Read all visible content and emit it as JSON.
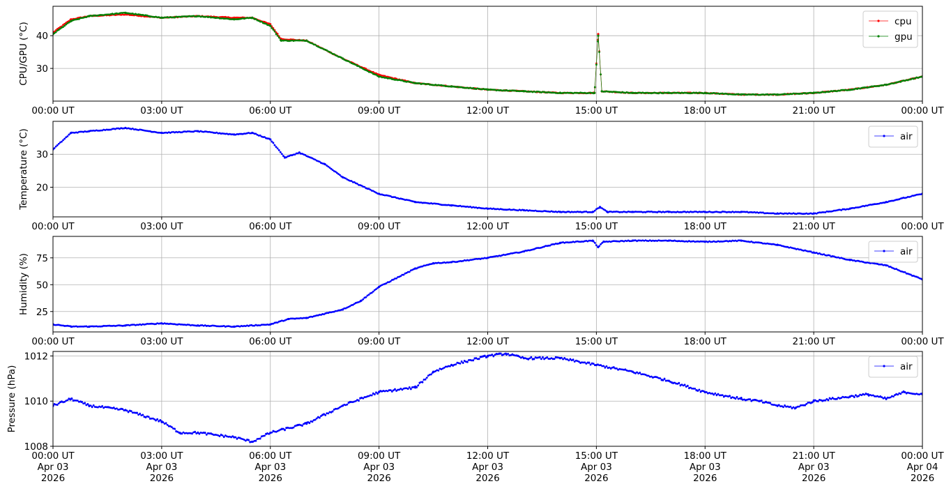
{
  "chart_data": [
    {
      "type": "line",
      "ylabel": "CPU/GPU (°C)",
      "ylim": [
        20,
        49
      ],
      "yticks": [
        30,
        40
      ],
      "grid": true,
      "legend_position": "top-right",
      "x_tick_labels": [
        "00:00 UT",
        "03:00 UT",
        "06:00 UT",
        "09:00 UT",
        "12:00 UT",
        "15:00 UT",
        "18:00 UT",
        "21:00 UT",
        "00:00 UT"
      ],
      "x_hours": [
        0,
        0.5,
        1,
        2,
        3,
        4,
        5,
        5.5,
        6,
        6.3,
        7,
        8,
        9,
        10,
        11,
        12,
        13,
        14,
        14.95,
        15.05,
        15.15,
        16,
        17,
        18,
        19,
        20,
        21,
        22,
        23,
        24
      ],
      "series": [
        {
          "name": "cpu",
          "color": "#ff0000",
          "values": [
            41,
            45,
            46,
            46.5,
            45.5,
            46,
            45.5,
            45.5,
            43.5,
            39,
            38.5,
            33,
            28,
            25.5,
            24.5,
            23.5,
            23,
            22.5,
            22.5,
            40.5,
            23,
            22.5,
            22.5,
            22.5,
            22,
            22,
            22.5,
            23.5,
            25,
            27.5
          ]
        },
        {
          "name": "gpu",
          "color": "#008000",
          "values": [
            40.5,
            44.5,
            46,
            47,
            45.5,
            46,
            45,
            45.5,
            43,
            38.5,
            38.5,
            33,
            27.5,
            25.5,
            24.5,
            23.5,
            23,
            22.5,
            22.5,
            40,
            23,
            22.5,
            22.5,
            22.5,
            22,
            22,
            22.5,
            23.5,
            25,
            27.5
          ]
        }
      ]
    },
    {
      "type": "line",
      "ylabel": "Temperature (°C)",
      "ylim": [
        11,
        40
      ],
      "yticks": [
        20,
        30
      ],
      "grid": true,
      "legend_position": "top-right",
      "x_tick_labels": [
        "00:00 UT",
        "03:00 UT",
        "06:00 UT",
        "09:00 UT",
        "12:00 UT",
        "15:00 UT",
        "18:00 UT",
        "21:00 UT",
        "00:00 UT"
      ],
      "x_hours": [
        0,
        0.5,
        1,
        2,
        3,
        4,
        5,
        5.5,
        6,
        6.4,
        6.8,
        7.5,
        8,
        9,
        10,
        11,
        12,
        13,
        14,
        14.9,
        15.1,
        15.3,
        16,
        17,
        18,
        19,
        20,
        21,
        22,
        23,
        24
      ],
      "series": [
        {
          "name": "air",
          "color": "#0000ff",
          "values": [
            31.5,
            36.5,
            37,
            38,
            36.5,
            37,
            36,
            36.5,
            34.5,
            29,
            30.5,
            27,
            23,
            18,
            15.5,
            14.5,
            13.5,
            13,
            12.5,
            12.5,
            14,
            12.5,
            12.5,
            12.5,
            12.5,
            12.5,
            12,
            12,
            13.5,
            15.5,
            18
          ]
        }
      ]
    },
    {
      "type": "line",
      "ylabel": "Humidity (%)",
      "ylim": [
        6,
        95
      ],
      "yticks": [
        25,
        50,
        75
      ],
      "grid": true,
      "legend_position": "top-right",
      "x_tick_labels": [
        "00:00 UT",
        "03:00 UT",
        "06:00 UT",
        "09:00 UT",
        "12:00 UT",
        "15:00 UT",
        "18:00 UT",
        "21:00 UT",
        "00:00 UT"
      ],
      "x_hours": [
        0,
        0.5,
        1,
        2,
        3,
        4,
        5,
        6,
        6.5,
        7,
        8,
        8.5,
        9,
        10,
        10.5,
        11,
        12,
        13,
        14,
        14.9,
        15.05,
        15.2,
        16,
        17,
        18,
        19,
        20,
        21,
        22,
        23,
        24
      ],
      "series": [
        {
          "name": "air",
          "color": "#0000ff",
          "values": [
            13,
            11,
            11,
            12,
            14,
            12,
            11,
            13,
            18,
            19,
            27,
            35,
            48,
            65,
            70,
            71,
            75,
            81,
            89,
            91,
            85,
            90,
            91,
            91,
            90,
            91,
            87,
            80,
            73,
            68,
            55
          ]
        }
      ]
    },
    {
      "type": "line",
      "ylabel": "Pressure (hPa)",
      "ylim": [
        1008,
        1012.2
      ],
      "yticks": [
        1008,
        1010,
        1012
      ],
      "grid": true,
      "legend_position": "top-right",
      "x_tick_labels": [
        "00:00 UT\nApr 03\n2026",
        "03:00 UT\nApr 03\n2026",
        "06:00 UT\nApr 03\n2026",
        "09:00 UT\nApr 03\n2026",
        "12:00 UT\nApr 03\n2026",
        "15:00 UT\nApr 03\n2026",
        "18:00 UT\nApr 03\n2026",
        "21:00 UT\nApr 03\n2026",
        "00:00 UT\nApr 04\n2026"
      ],
      "x_hours": [
        0,
        0.5,
        1,
        2,
        3,
        3.5,
        4,
        5,
        5.5,
        6,
        7,
        8,
        9,
        10,
        10.5,
        11,
        12,
        12.5,
        13,
        14,
        15,
        16,
        17,
        18,
        19,
        19.5,
        20,
        20.5,
        21,
        22,
        22.5,
        23,
        23.5,
        24
      ],
      "series": [
        {
          "name": "air",
          "color": "#0000ff",
          "values": [
            1009.8,
            1010.1,
            1009.8,
            1009.6,
            1009.1,
            1008.6,
            1008.6,
            1008.4,
            1008.2,
            1008.6,
            1009.0,
            1009.8,
            1010.4,
            1010.6,
            1011.3,
            1011.6,
            1012.0,
            1012.1,
            1011.9,
            1011.9,
            1011.6,
            1011.3,
            1010.9,
            1010.4,
            1010.1,
            1010.0,
            1009.8,
            1009.7,
            1010.0,
            1010.2,
            1010.3,
            1010.1,
            1010.4,
            1010.3
          ]
        }
      ]
    }
  ]
}
